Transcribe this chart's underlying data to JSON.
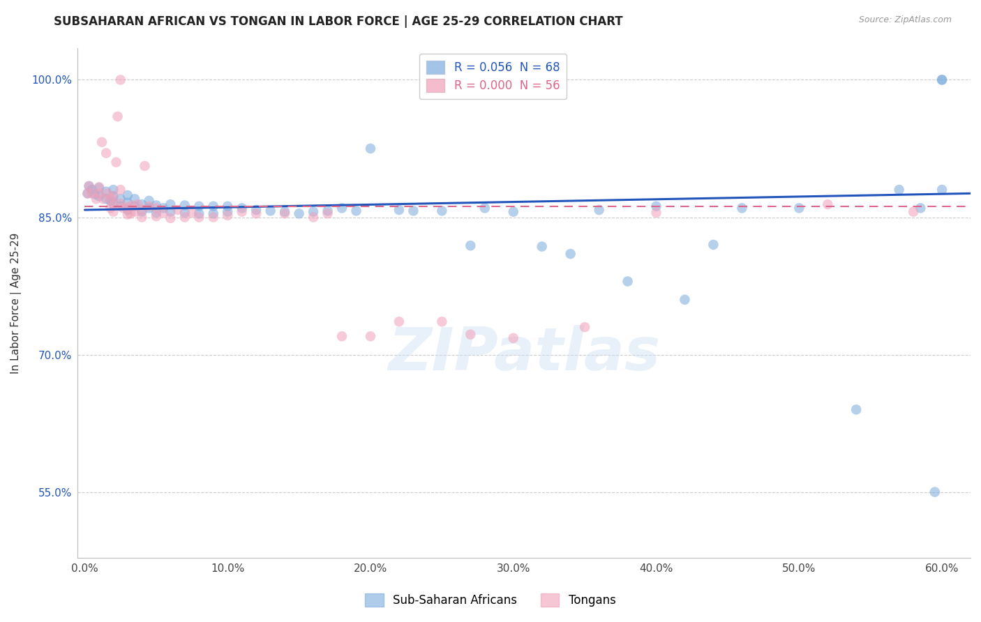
{
  "title": "SUBSAHARAN AFRICAN VS TONGAN IN LABOR FORCE | AGE 25-29 CORRELATION CHART",
  "source": "Source: ZipAtlas.com",
  "ylabel": "In Labor Force | Age 25-29",
  "xlim": [
    -0.005,
    0.62
  ],
  "ylim": [
    0.478,
    1.035
  ],
  "ytick_vals": [
    0.55,
    0.7,
    0.85,
    1.0
  ],
  "ytick_labels": [
    "55.0%",
    "70.0%",
    "85.0%",
    "100.0%"
  ],
  "xtick_vals": [
    0.0,
    0.1,
    0.2,
    0.3,
    0.4,
    0.5,
    0.6
  ],
  "xtick_labels": [
    "0.0%",
    "10.0%",
    "20.0%",
    "30.0%",
    "40.0%",
    "50.0%",
    "60.0%"
  ],
  "blue_scatter_x": [
    0.002,
    0.003,
    0.005,
    0.007,
    0.01,
    0.01,
    0.015,
    0.015,
    0.018,
    0.02,
    0.02,
    0.02,
    0.025,
    0.025,
    0.03,
    0.03,
    0.03,
    0.035,
    0.035,
    0.04,
    0.04,
    0.045,
    0.045,
    0.05,
    0.05,
    0.055,
    0.06,
    0.06,
    0.07,
    0.07,
    0.08,
    0.08,
    0.09,
    0.09,
    0.1,
    0.1,
    0.11,
    0.12,
    0.13,
    0.14,
    0.15,
    0.16,
    0.17,
    0.18,
    0.19,
    0.2,
    0.22,
    0.23,
    0.25,
    0.27,
    0.28,
    0.3,
    0.32,
    0.34,
    0.36,
    0.38,
    0.4,
    0.42,
    0.44,
    0.46,
    0.5,
    0.54,
    0.57,
    0.585,
    0.595,
    0.6,
    0.6,
    0.6
  ],
  "blue_scatter_y": [
    0.876,
    0.884,
    0.88,
    0.875,
    0.873,
    0.882,
    0.87,
    0.878,
    0.868,
    0.865,
    0.873,
    0.88,
    0.862,
    0.87,
    0.858,
    0.866,
    0.874,
    0.862,
    0.87,
    0.856,
    0.864,
    0.86,
    0.868,
    0.855,
    0.863,
    0.86,
    0.856,
    0.864,
    0.855,
    0.863,
    0.854,
    0.862,
    0.854,
    0.862,
    0.856,
    0.862,
    0.86,
    0.858,
    0.857,
    0.856,
    0.854,
    0.856,
    0.857,
    0.86,
    0.857,
    0.925,
    0.858,
    0.857,
    0.857,
    0.819,
    0.86,
    0.856,
    0.818,
    0.81,
    0.858,
    0.78,
    0.862,
    0.76,
    0.82,
    0.86,
    0.86,
    0.64,
    0.88,
    0.86,
    0.55,
    1.0,
    0.88,
    1.0
  ],
  "pink_scatter_x": [
    0.002,
    0.003,
    0.005,
    0.008,
    0.01,
    0.01,
    0.012,
    0.013,
    0.015,
    0.016,
    0.018,
    0.018,
    0.02,
    0.02,
    0.02,
    0.022,
    0.023,
    0.025,
    0.025,
    0.025,
    0.027,
    0.03,
    0.03,
    0.032,
    0.033,
    0.035,
    0.037,
    0.04,
    0.04,
    0.042,
    0.045,
    0.05,
    0.05,
    0.055,
    0.06,
    0.065,
    0.07,
    0.075,
    0.08,
    0.09,
    0.1,
    0.11,
    0.12,
    0.14,
    0.16,
    0.17,
    0.18,
    0.2,
    0.22,
    0.25,
    0.27,
    0.3,
    0.35,
    0.4,
    0.52,
    0.58
  ],
  "pink_scatter_y": [
    0.876,
    0.884,
    0.876,
    0.87,
    0.876,
    0.883,
    0.932,
    0.87,
    0.92,
    0.876,
    0.86,
    0.87,
    0.856,
    0.864,
    0.873,
    0.91,
    0.96,
    1.0,
    0.88,
    0.865,
    0.86,
    0.853,
    0.861,
    0.854,
    0.863,
    0.856,
    0.864,
    0.85,
    0.858,
    0.906,
    0.862,
    0.851,
    0.86,
    0.855,
    0.849,
    0.858,
    0.85,
    0.855,
    0.85,
    0.85,
    0.852,
    0.856,
    0.854,
    0.854,
    0.85,
    0.854,
    0.72,
    0.72,
    0.736,
    0.736,
    0.722,
    0.718,
    0.73,
    0.855,
    0.864,
    0.856
  ],
  "blue_line_x": [
    0.0,
    0.62
  ],
  "blue_line_y": [
    0.858,
    0.876
  ],
  "pink_line_x": [
    0.0,
    0.62
  ],
  "pink_line_y": [
    0.862,
    0.862
  ],
  "blue_color": "#7aabdd",
  "pink_color": "#f0a0b8",
  "blue_line_color": "#2255bb",
  "pink_line_color": "#dd6688",
  "grid_color": "#cccccc",
  "watermark": "ZIPatlas",
  "legend_blue_text": "R = 0.056  N = 68",
  "legend_pink_text": "R = 0.000  N = 56",
  "legend_bottom_blue": "Sub-Saharan Africans",
  "legend_bottom_pink": "Tongans"
}
